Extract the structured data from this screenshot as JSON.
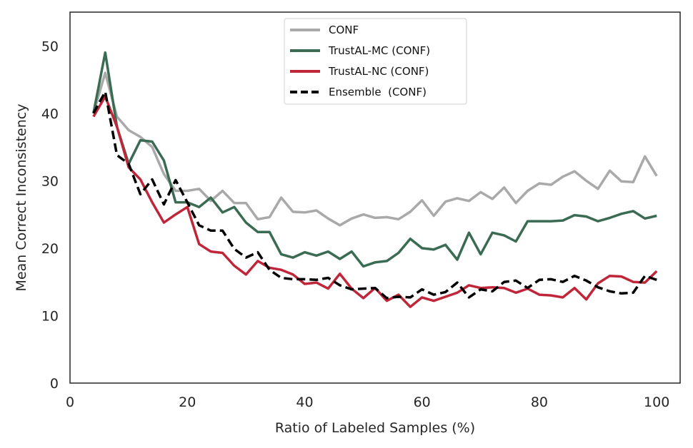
{
  "chart_data": {
    "type": "line",
    "title": "",
    "xlabel": "Ratio of Labeled Samples (%)",
    "ylabel": "Mean Correct Inconsistency",
    "xlim": [
      0,
      104
    ],
    "ylim": [
      0,
      55
    ],
    "xticks": [
      0,
      20,
      40,
      60,
      80,
      100
    ],
    "yticks": [
      0,
      10,
      20,
      30,
      40,
      50
    ],
    "grid": false,
    "legend_position": "top-center",
    "x": [
      4,
      6,
      8,
      10,
      12,
      14,
      16,
      18,
      20,
      22,
      24,
      26,
      28,
      30,
      32,
      34,
      36,
      38,
      40,
      42,
      44,
      46,
      48,
      50,
      52,
      54,
      56,
      58,
      60,
      62,
      64,
      66,
      68,
      70,
      72,
      74,
      76,
      78,
      80,
      82,
      84,
      86,
      88,
      90,
      92,
      94,
      96,
      98,
      100
    ],
    "series": [
      {
        "name": "CONF",
        "color": "#a9a9a9",
        "style": "solid",
        "values": [
          40,
          46,
          39.5,
          37.5,
          36.5,
          35,
          31,
          28.5,
          28.5,
          28.8,
          27,
          28.5,
          26.7,
          26.7,
          24.3,
          24.6,
          27.5,
          25.4,
          25.3,
          25.6,
          24.4,
          23.4,
          24.4,
          25,
          24.5,
          24.6,
          24.3,
          25.4,
          27.1,
          24.8,
          26.9,
          27.4,
          27,
          28.3,
          27.3,
          29,
          26.7,
          28.5,
          29.6,
          29.4,
          30.6,
          31.4,
          30,
          28.8,
          31.5,
          29.9,
          29.8,
          33.6,
          30.7
        ]
      },
      {
        "name": "TrustAL-MC (CONF)",
        "color": "#3b6b52",
        "style": "solid",
        "values": [
          40,
          49,
          38,
          32.5,
          36,
          35.8,
          33,
          26.8,
          26.8,
          26.1,
          27.5,
          25.3,
          26.1,
          23.8,
          22.4,
          22.4,
          19.1,
          18.6,
          19.4,
          18.9,
          19.5,
          18.4,
          19.5,
          17.3,
          17.9,
          18.1,
          19.3,
          21.4,
          20,
          19.8,
          20.5,
          18.3,
          22.3,
          19.1,
          22.3,
          21.9,
          21,
          24,
          24,
          24,
          24.1,
          24.9,
          24.7,
          24,
          24.5,
          25.1,
          25.5,
          24.4,
          24.8
        ]
      },
      {
        "name": "TrustAL-NC (CONF)",
        "color": "#c0263a",
        "style": "solid",
        "values": [
          39.5,
          42.5,
          38,
          32,
          30.2,
          26.8,
          23.8,
          25,
          26.1,
          20.6,
          19.5,
          19.3,
          17.4,
          16.1,
          18.1,
          17.1,
          16.8,
          16.1,
          14.7,
          14.9,
          14,
          16.2,
          14,
          12.6,
          14.1,
          12.2,
          13.1,
          11.3,
          12.7,
          12.2,
          12.8,
          13.4,
          14.5,
          14.1,
          14.2,
          14.1,
          13.4,
          14,
          13.1,
          13,
          12.7,
          14.1,
          12.4,
          14.8,
          15.9,
          15.8,
          15,
          14.9,
          16.6
        ]
      },
      {
        "name": "Ensemble  (CONF)",
        "color": "#000000",
        "style": "dashed",
        "values": [
          40,
          43.2,
          33.8,
          32.5,
          28,
          30.2,
          26.5,
          30.1,
          26.8,
          23.4,
          22.6,
          22.6,
          19.9,
          18.6,
          19.4,
          16.8,
          15.6,
          15.4,
          15.4,
          15.3,
          15.6,
          14.5,
          13.9,
          14,
          14.1,
          12.6,
          12.8,
          12.7,
          13.9,
          13.1,
          13.5,
          14.9,
          12.7,
          13.9,
          13.6,
          15,
          15.2,
          14.1,
          15.3,
          15.4,
          15,
          15.9,
          15.2,
          14.2,
          13.6,
          13.3,
          13.4,
          15.9,
          15.3
        ]
      }
    ]
  }
}
